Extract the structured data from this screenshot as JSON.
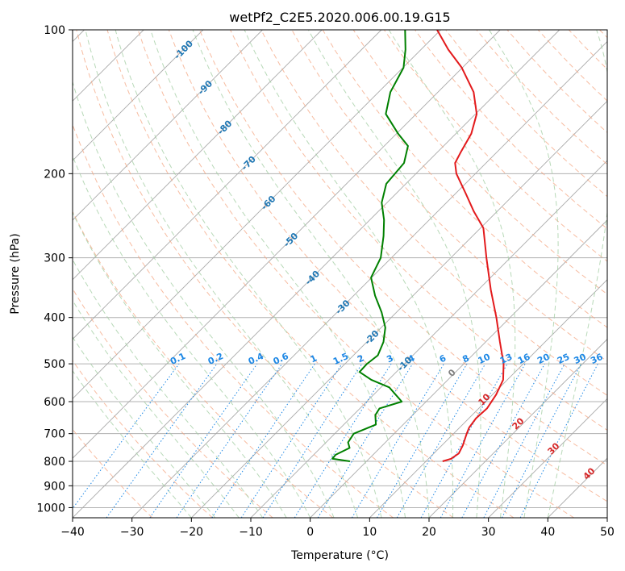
{
  "chart_data": {
    "type": "skew-t",
    "title": "wetPf2_C2E5.2020.006.00.19.G15",
    "xlabel": "Temperature (°C)",
    "ylabel": "Pressure (hPa)",
    "xlim": [
      -40,
      50
    ],
    "ylim": [
      1050,
      100
    ],
    "y_scale": "log",
    "grid": true,
    "x_ticks": [
      -40,
      -30,
      -20,
      -10,
      0,
      10,
      20,
      30,
      40,
      50
    ],
    "y_ticks": [
      100,
      200,
      300,
      400,
      500,
      600,
      700,
      800,
      900,
      1000
    ],
    "series": [
      {
        "color": "#e31a1c",
        "points": [
          {
            "p": 800,
            "t": 12.8
          },
          {
            "p": 790,
            "t": 13.8
          },
          {
            "p": 770,
            "t": 14.2
          },
          {
            "p": 740,
            "t": 13.5
          },
          {
            "p": 700,
            "t": 12.2
          },
          {
            "p": 680,
            "t": 11.6
          },
          {
            "p": 650,
            "t": 11.2
          },
          {
            "p": 620,
            "t": 11.4
          },
          {
            "p": 580,
            "t": 10.6
          },
          {
            "p": 540,
            "t": 9.3
          },
          {
            "p": 500,
            "t": 6.7
          },
          {
            "p": 450,
            "t": 2.4
          },
          {
            "p": 400,
            "t": -2.3
          },
          {
            "p": 350,
            "t": -7.9
          },
          {
            "p": 300,
            "t": -14.0
          },
          {
            "p": 260,
            "t": -19.5
          },
          {
            "p": 240,
            "t": -23.9
          },
          {
            "p": 220,
            "t": -28.3
          },
          {
            "p": 200,
            "t": -33.2
          },
          {
            "p": 190,
            "t": -35.2
          },
          {
            "p": 180,
            "t": -36.1
          },
          {
            "p": 165,
            "t": -37.4
          },
          {
            "p": 150,
            "t": -39.8
          },
          {
            "p": 135,
            "t": -44.0
          },
          {
            "p": 120,
            "t": -50.1
          },
          {
            "p": 110,
            "t": -55.4
          },
          {
            "p": 100,
            "t": -60.6
          }
        ]
      },
      {
        "color": "#008000",
        "points": [
          {
            "p": 800,
            "t": -2.8
          },
          {
            "p": 790,
            "t": -6.2
          },
          {
            "p": 775,
            "t": -6.3
          },
          {
            "p": 750,
            "t": -5.1
          },
          {
            "p": 730,
            "t": -6.3
          },
          {
            "p": 700,
            "t": -6.8
          },
          {
            "p": 670,
            "t": -4.6
          },
          {
            "p": 640,
            "t": -6.3
          },
          {
            "p": 620,
            "t": -6.7
          },
          {
            "p": 600,
            "t": -4.1
          },
          {
            "p": 560,
            "t": -8.6
          },
          {
            "p": 540,
            "t": -12.9
          },
          {
            "p": 520,
            "t": -16.2
          },
          {
            "p": 500,
            "t": -16.3
          },
          {
            "p": 480,
            "t": -15.9
          },
          {
            "p": 450,
            "t": -17.2
          },
          {
            "p": 420,
            "t": -19.3
          },
          {
            "p": 390,
            "t": -22.5
          },
          {
            "p": 360,
            "t": -26.4
          },
          {
            "p": 330,
            "t": -30.1
          },
          {
            "p": 300,
            "t": -31.8
          },
          {
            "p": 270,
            "t": -35.0
          },
          {
            "p": 250,
            "t": -37.6
          },
          {
            "p": 230,
            "t": -40.9
          },
          {
            "p": 210,
            "t": -43.3
          },
          {
            "p": 190,
            "t": -43.8
          },
          {
            "p": 175,
            "t": -46.0
          },
          {
            "p": 165,
            "t": -49.7
          },
          {
            "p": 150,
            "t": -55.1
          },
          {
            "p": 135,
            "t": -58.0
          },
          {
            "p": 120,
            "t": -59.9
          },
          {
            "p": 110,
            "t": -62.6
          },
          {
            "p": 100,
            "t": -66.0
          }
        ]
      }
    ],
    "isotherm_labels": [
      -100,
      -90,
      -80,
      -70,
      -60,
      -50,
      -40,
      -30,
      -20,
      -10
    ],
    "mixing_ratio_labels": [
      "0.1",
      "0.2",
      "0.4",
      "0.6",
      "1",
      "1.5",
      "2",
      "3",
      "4",
      "6",
      "8",
      "10",
      "13",
      "16",
      "20",
      "25",
      "30",
      "36"
    ],
    "dry_adiabat_labels": [
      "0",
      "10",
      "20",
      "30",
      "40"
    ]
  }
}
